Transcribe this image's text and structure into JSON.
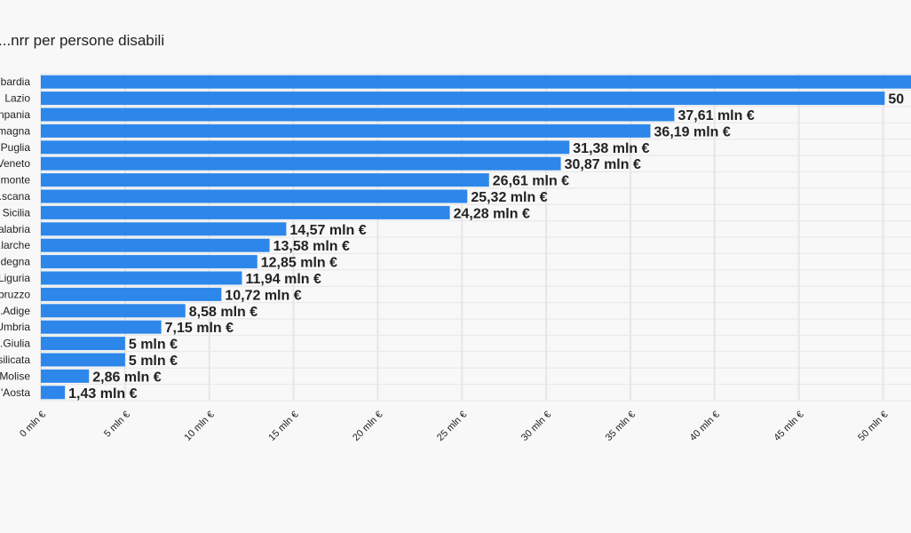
{
  "chart_data": {
    "type": "bar",
    "orientation": "horizontal",
    "title": "...nrr per persone disabili",
    "categories": [
      "...bardia",
      "Lazio",
      "...npania",
      "...magna",
      "Puglia",
      "Veneto",
      "...monte",
      "...scana",
      "Sicilia",
      "...alabria",
      "...larche",
      "...degna",
      "Liguria",
      "...bruzzo",
      "...Adige",
      "...Umbria",
      "...Giulia",
      "...silicata",
      "Molise",
      "...'Aosta"
    ],
    "values": [
      52,
      50.1,
      37.61,
      36.19,
      31.38,
      30.87,
      26.61,
      25.32,
      24.28,
      14.57,
      13.58,
      12.85,
      11.94,
      10.72,
      8.58,
      7.15,
      5,
      5,
      2.86,
      1.43
    ],
    "value_labels": [
      "",
      "50",
      "37,61 mln €",
      "36,19 mln €",
      "31,38 mln €",
      "30,87 mln €",
      "26,61 mln €",
      "25,32 mln €",
      "24,28 mln €",
      "14,57 mln €",
      "13,58 mln €",
      "12,85 mln €",
      "11,94 mln €",
      "10,72 mln €",
      "8,58 mln €",
      "7,15 mln €",
      "5 mln €",
      "5 mln €",
      "2,86 mln €",
      "1,43 mln €"
    ],
    "x_ticks": [
      0,
      5,
      10,
      15,
      20,
      25,
      30,
      35,
      40,
      45,
      50
    ],
    "x_tick_labels": [
      "0 mln €",
      "5 mln €",
      "10 mln €",
      "15 mln €",
      "20 mln €",
      "25 mln €",
      "30 mln €",
      "35 mln €",
      "40 mln €",
      "45 mln €",
      "50 mln €"
    ],
    "xlim": [
      0,
      50
    ],
    "grid": true,
    "colors": {
      "bar": "#2d87ea",
      "grid": "#e6e6e6",
      "background": "#f8f8f8"
    }
  }
}
